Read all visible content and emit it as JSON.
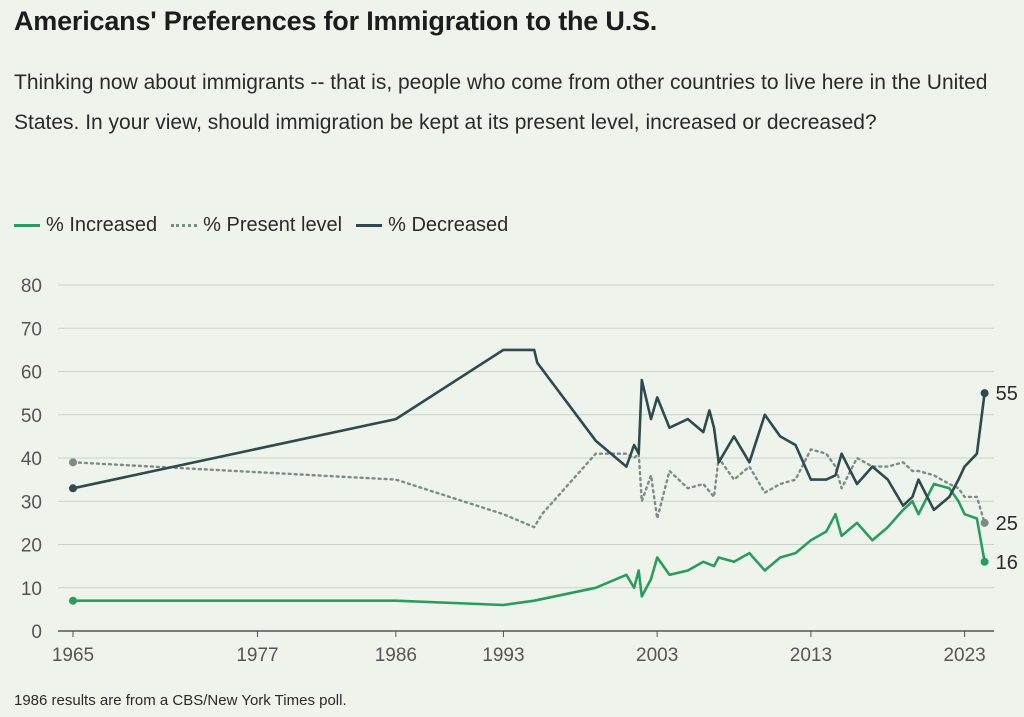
{
  "header": {
    "title": "Americans' Preferences for Immigration to the U.S.",
    "subtitle": "Thinking now about immigrants -- that is, people who come from other countries to live here in the United States. In your view, should immigration be kept at its present level, increased or decreased?"
  },
  "footnote": "1986 results are from a CBS/New York Times poll.",
  "colors": {
    "increased": "#2a9d5c",
    "present": "#7d8c86",
    "decreased": "#2f4a4e",
    "grid": "#c9d2cb",
    "axis": "#555555"
  },
  "chart_data": {
    "type": "line",
    "title": "Americans' Preferences for Immigration to the U.S.",
    "xlabel": "",
    "ylabel": "",
    "xlim": [
      1965,
      2024
    ],
    "ylim": [
      0,
      80
    ],
    "x_ticks": [
      1965,
      1977,
      1986,
      1993,
      2003,
      2013,
      2023
    ],
    "y_ticks": [
      0,
      10,
      20,
      30,
      40,
      50,
      60,
      70,
      80
    ],
    "grid": true,
    "legend_position": "top-left",
    "series": [
      {
        "key": "increased",
        "name": "% Increased",
        "style": "solid",
        "end_label": "16",
        "points": [
          [
            1965,
            7
          ],
          [
            1986,
            7
          ],
          [
            1993,
            6
          ],
          [
            1995,
            7
          ],
          [
            1999,
            10
          ],
          [
            2001,
            13
          ],
          [
            2001.5,
            10
          ],
          [
            2001.8,
            14
          ],
          [
            2002,
            8
          ],
          [
            2002.6,
            12
          ],
          [
            2003,
            17
          ],
          [
            2003.8,
            13
          ],
          [
            2005,
            14
          ],
          [
            2006,
            16
          ],
          [
            2006.7,
            15
          ],
          [
            2007,
            17
          ],
          [
            2008,
            16
          ],
          [
            2009,
            18
          ],
          [
            2010,
            14
          ],
          [
            2011,
            17
          ],
          [
            2012,
            18
          ],
          [
            2013,
            21
          ],
          [
            2014,
            23
          ],
          [
            2014.6,
            27
          ],
          [
            2015,
            22
          ],
          [
            2016,
            25
          ],
          [
            2017,
            21
          ],
          [
            2018,
            24
          ],
          [
            2019,
            28
          ],
          [
            2019.6,
            30
          ],
          [
            2020,
            27
          ],
          [
            2021,
            34
          ],
          [
            2022,
            33
          ],
          [
            2022.6,
            30
          ],
          [
            2023,
            27
          ],
          [
            2023.8,
            26
          ],
          [
            2024.3,
            16
          ]
        ]
      },
      {
        "key": "present",
        "name": "% Present level",
        "style": "dotted",
        "end_label": "25",
        "points": [
          [
            1965,
            39
          ],
          [
            1986,
            35
          ],
          [
            1993,
            27
          ],
          [
            1995,
            24
          ],
          [
            1995.5,
            27
          ],
          [
            1999,
            41
          ],
          [
            2001,
            41
          ],
          [
            2001.5,
            40
          ],
          [
            2001.8,
            41
          ],
          [
            2002,
            30
          ],
          [
            2002.6,
            36
          ],
          [
            2003,
            26
          ],
          [
            2003.8,
            37
          ],
          [
            2005,
            33
          ],
          [
            2006,
            34
          ],
          [
            2006.7,
            31
          ],
          [
            2007,
            40
          ],
          [
            2008,
            35
          ],
          [
            2009,
            38
          ],
          [
            2010,
            32
          ],
          [
            2011,
            34
          ],
          [
            2012,
            35
          ],
          [
            2013,
            42
          ],
          [
            2014,
            41
          ],
          [
            2014.6,
            38
          ],
          [
            2015,
            33
          ],
          [
            2016,
            40
          ],
          [
            2017,
            38
          ],
          [
            2018,
            38
          ],
          [
            2019,
            39
          ],
          [
            2019.6,
            37
          ],
          [
            2020,
            37
          ],
          [
            2021,
            36
          ],
          [
            2022,
            34
          ],
          [
            2022.6,
            33
          ],
          [
            2023,
            31
          ],
          [
            2023.8,
            31
          ],
          [
            2024.3,
            25
          ]
        ]
      },
      {
        "key": "decreased",
        "name": "% Decreased",
        "style": "solid",
        "end_label": "55",
        "points": [
          [
            1965,
            33
          ],
          [
            1986,
            49
          ],
          [
            1993,
            65
          ],
          [
            1995,
            65
          ],
          [
            1995.2,
            62
          ],
          [
            1999,
            44
          ],
          [
            2001,
            38
          ],
          [
            2001.5,
            43
          ],
          [
            2001.8,
            41
          ],
          [
            2002,
            58
          ],
          [
            2002.6,
            49
          ],
          [
            2003,
            54
          ],
          [
            2003.8,
            47
          ],
          [
            2005,
            49
          ],
          [
            2006,
            46
          ],
          [
            2006.4,
            51
          ],
          [
            2006.7,
            47
          ],
          [
            2007,
            39
          ],
          [
            2008,
            45
          ],
          [
            2009,
            39
          ],
          [
            2010,
            50
          ],
          [
            2011,
            45
          ],
          [
            2012,
            43
          ],
          [
            2013,
            35
          ],
          [
            2014,
            35
          ],
          [
            2014.6,
            36
          ],
          [
            2015,
            41
          ],
          [
            2016,
            34
          ],
          [
            2017,
            38
          ],
          [
            2018,
            35
          ],
          [
            2019,
            29
          ],
          [
            2019.6,
            31
          ],
          [
            2020,
            35
          ],
          [
            2021,
            28
          ],
          [
            2022,
            31
          ],
          [
            2022.6,
            35
          ],
          [
            2023,
            38
          ],
          [
            2023.8,
            41
          ],
          [
            2024.3,
            55
          ]
        ]
      }
    ]
  }
}
